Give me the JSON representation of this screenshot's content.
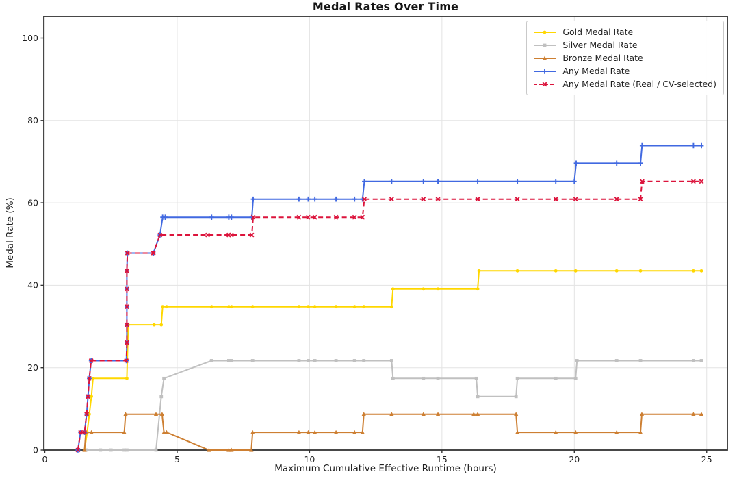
{
  "chart_data": {
    "type": "line",
    "title": "Medal Rates Over Time",
    "xlabel": "Maximum Cumulative Effective Runtime (hours)",
    "ylabel": "Medal Rate (%)",
    "xlim": [
      0,
      25.8
    ],
    "ylim": [
      0,
      105
    ],
    "x_ticks": [
      0,
      5,
      10,
      15,
      20,
      25
    ],
    "y_ticks": [
      0,
      20,
      40,
      60,
      80,
      100
    ],
    "grid": true,
    "legend_position": "upper right",
    "colors": {
      "gold": "#FFD700",
      "silver": "#C0C0C0",
      "bronze": "#CD7F32",
      "any": "#4169E1",
      "any_real": "#DC143C",
      "gridline": "#e3e3e3",
      "spine": "#333333"
    },
    "series": [
      {
        "id": "gold",
        "name": "Gold Medal Rate",
        "color": "#FFD700",
        "line_style": "solid",
        "marker": "circle",
        "points": [
          [
            1.5,
            0
          ],
          [
            1.6,
            4.3
          ],
          [
            1.68,
            8.7
          ],
          [
            1.76,
            13.0
          ],
          [
            1.82,
            17.4
          ],
          [
            3.1,
            17.4
          ],
          [
            3.15,
            30.4
          ],
          [
            4.13,
            30.4
          ],
          [
            4.4,
            30.4
          ],
          [
            4.45,
            34.8
          ],
          [
            4.6,
            34.8
          ],
          [
            6.3,
            34.8
          ],
          [
            6.95,
            34.8
          ],
          [
            7.05,
            34.8
          ],
          [
            7.85,
            34.8
          ],
          [
            9.6,
            34.8
          ],
          [
            9.95,
            34.8
          ],
          [
            10.2,
            34.8
          ],
          [
            11.0,
            34.8
          ],
          [
            11.7,
            34.8
          ],
          [
            12.05,
            34.8
          ],
          [
            13.1,
            34.8
          ],
          [
            13.15,
            39.1
          ],
          [
            14.3,
            39.1
          ],
          [
            14.85,
            39.1
          ],
          [
            16.35,
            39.1
          ],
          [
            16.4,
            43.5
          ],
          [
            17.85,
            43.5
          ],
          [
            19.3,
            43.5
          ],
          [
            20.05,
            43.5
          ],
          [
            21.6,
            43.5
          ],
          [
            22.5,
            43.5
          ],
          [
            24.5,
            43.5
          ],
          [
            24.8,
            43.5
          ]
        ]
      },
      {
        "id": "silver",
        "name": "Silver Medal Rate",
        "color": "#C0C0C0",
        "line_style": "solid",
        "marker": "square",
        "points": [
          [
            1.55,
            0
          ],
          [
            2.1,
            0
          ],
          [
            2.5,
            0
          ],
          [
            3.0,
            0
          ],
          [
            3.1,
            0
          ],
          [
            4.2,
            0
          ],
          [
            4.4,
            13.0
          ],
          [
            4.5,
            17.4
          ],
          [
            6.3,
            21.7
          ],
          [
            6.95,
            21.7
          ],
          [
            7.05,
            21.7
          ],
          [
            7.85,
            21.7
          ],
          [
            9.6,
            21.7
          ],
          [
            9.95,
            21.7
          ],
          [
            10.2,
            21.7
          ],
          [
            11.0,
            21.7
          ],
          [
            11.7,
            21.7
          ],
          [
            12.05,
            21.7
          ],
          [
            13.1,
            21.7
          ],
          [
            13.15,
            17.4
          ],
          [
            14.3,
            17.4
          ],
          [
            14.85,
            17.4
          ],
          [
            16.3,
            17.4
          ],
          [
            16.35,
            13.0
          ],
          [
            17.8,
            13.0
          ],
          [
            17.85,
            17.4
          ],
          [
            19.3,
            17.4
          ],
          [
            20.05,
            17.4
          ],
          [
            20.1,
            21.7
          ],
          [
            21.6,
            21.7
          ],
          [
            22.5,
            21.7
          ],
          [
            24.5,
            21.7
          ],
          [
            24.8,
            21.7
          ]
        ]
      },
      {
        "id": "bronze",
        "name": "Bronze Medal Rate",
        "color": "#CD7F32",
        "line_style": "solid",
        "marker": "triangle",
        "points": [
          [
            1.5,
            0
          ],
          [
            1.55,
            4.3
          ],
          [
            1.76,
            4.3
          ],
          [
            3.0,
            4.3
          ],
          [
            3.05,
            8.7
          ],
          [
            4.2,
            8.7
          ],
          [
            4.43,
            8.7
          ],
          [
            4.5,
            4.3
          ],
          [
            4.6,
            4.3
          ],
          [
            6.2,
            0
          ],
          [
            6.95,
            0
          ],
          [
            7.05,
            0
          ],
          [
            7.8,
            0
          ],
          [
            7.85,
            4.3
          ],
          [
            9.6,
            4.3
          ],
          [
            9.95,
            4.3
          ],
          [
            10.2,
            4.3
          ],
          [
            11.0,
            4.3
          ],
          [
            11.7,
            4.3
          ],
          [
            12.0,
            4.3
          ],
          [
            12.05,
            8.7
          ],
          [
            13.1,
            8.7
          ],
          [
            14.3,
            8.7
          ],
          [
            14.85,
            8.7
          ],
          [
            16.2,
            8.7
          ],
          [
            16.35,
            8.7
          ],
          [
            17.8,
            8.7
          ],
          [
            17.85,
            4.3
          ],
          [
            19.3,
            4.3
          ],
          [
            20.05,
            4.3
          ],
          [
            21.6,
            4.3
          ],
          [
            22.5,
            4.3
          ],
          [
            22.55,
            8.7
          ],
          [
            24.5,
            8.7
          ],
          [
            24.8,
            8.7
          ]
        ]
      },
      {
        "id": "any",
        "name": "Any Medal Rate",
        "color": "#4169E1",
        "line_style": "solid",
        "marker": "plus",
        "points": [
          [
            1.25,
            0
          ],
          [
            1.35,
            4.3
          ],
          [
            1.5,
            4.3
          ],
          [
            1.58,
            8.7
          ],
          [
            1.63,
            13.0
          ],
          [
            1.68,
            17.4
          ],
          [
            1.75,
            21.7
          ],
          [
            3.08,
            21.7
          ],
          [
            3.1,
            26.1
          ],
          [
            3.1,
            30.4
          ],
          [
            3.1,
            34.8
          ],
          [
            3.1,
            39.1
          ],
          [
            3.1,
            43.5
          ],
          [
            3.12,
            47.8
          ],
          [
            4.1,
            47.8
          ],
          [
            4.35,
            52.2
          ],
          [
            4.45,
            56.5
          ],
          [
            4.55,
            56.5
          ],
          [
            6.3,
            56.5
          ],
          [
            6.95,
            56.5
          ],
          [
            7.05,
            56.5
          ],
          [
            7.82,
            56.5
          ],
          [
            7.87,
            60.9
          ],
          [
            9.6,
            60.9
          ],
          [
            9.95,
            60.9
          ],
          [
            10.2,
            60.9
          ],
          [
            11.0,
            60.9
          ],
          [
            11.7,
            60.9
          ],
          [
            12.0,
            60.9
          ],
          [
            12.07,
            65.2
          ],
          [
            13.1,
            65.2
          ],
          [
            14.3,
            65.2
          ],
          [
            14.85,
            65.2
          ],
          [
            16.35,
            65.2
          ],
          [
            17.85,
            65.2
          ],
          [
            19.3,
            65.2
          ],
          [
            20.0,
            65.2
          ],
          [
            20.07,
            69.6
          ],
          [
            21.6,
            69.6
          ],
          [
            22.5,
            69.6
          ],
          [
            22.56,
            73.9
          ],
          [
            24.5,
            73.9
          ],
          [
            24.8,
            73.9
          ]
        ]
      },
      {
        "id": "any_real",
        "name": "Any Medal Rate (Real / CV-selected)",
        "color": "#DC143C",
        "line_style": "dashed",
        "marker": "x",
        "points": [
          [
            1.25,
            0
          ],
          [
            1.35,
            4.3
          ],
          [
            1.5,
            4.3
          ],
          [
            1.58,
            8.7
          ],
          [
            1.63,
            13.0
          ],
          [
            1.68,
            17.4
          ],
          [
            1.75,
            21.7
          ],
          [
            3.08,
            21.7
          ],
          [
            3.1,
            26.1
          ],
          [
            3.1,
            30.4
          ],
          [
            3.1,
            34.8
          ],
          [
            3.1,
            39.1
          ],
          [
            3.1,
            43.5
          ],
          [
            3.12,
            47.8
          ],
          [
            4.1,
            47.8
          ],
          [
            4.35,
            52.2
          ],
          [
            6.15,
            52.2
          ],
          [
            6.95,
            52.2
          ],
          [
            7.05,
            52.2
          ],
          [
            7.82,
            52.2
          ],
          [
            7.87,
            56.5
          ],
          [
            9.6,
            56.5
          ],
          [
            9.95,
            56.5
          ],
          [
            10.2,
            56.5
          ],
          [
            11.0,
            56.5
          ],
          [
            11.7,
            56.5
          ],
          [
            12.0,
            56.5
          ],
          [
            12.07,
            60.9
          ],
          [
            13.1,
            60.9
          ],
          [
            14.3,
            60.9
          ],
          [
            14.85,
            60.9
          ],
          [
            16.35,
            60.9
          ],
          [
            17.85,
            60.9
          ],
          [
            19.3,
            60.9
          ],
          [
            20.05,
            60.9
          ],
          [
            21.6,
            60.9
          ],
          [
            22.5,
            60.9
          ],
          [
            22.56,
            65.2
          ],
          [
            24.5,
            65.2
          ],
          [
            24.8,
            65.2
          ]
        ]
      }
    ]
  }
}
